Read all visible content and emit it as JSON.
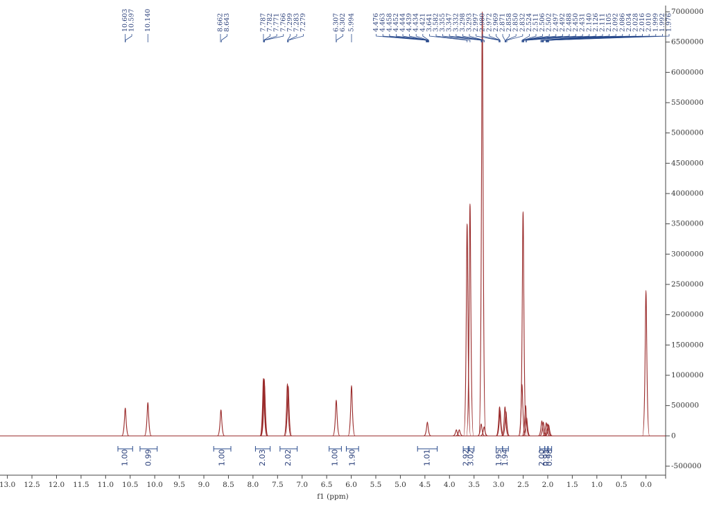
{
  "chart_data": {
    "type": "spectrum",
    "x_label": "f1 (ppm)",
    "color": "#9a2b2b",
    "label_color": "#2a4b8d",
    "x": [
      10.6,
      10.14,
      8.652,
      7.787,
      7.771,
      7.782,
      7.766,
      7.299,
      7.283,
      6.305,
      5.994,
      4.45,
      3.86,
      3.8,
      3.641,
      3.582,
      3.355,
      3.332,
      3.295,
      2.98,
      2.97,
      2.87,
      2.85,
      2.524,
      2.502,
      2.45,
      2.43,
      2.12,
      2.09,
      2.03,
      2.0,
      1.98,
      0.0
    ],
    "values": [
      460000,
      550000,
      430000,
      950000,
      940000,
      850000,
      840000,
      860000,
      820000,
      590000,
      830000,
      230000,
      100000,
      100000,
      3500000,
      3830000,
      200000,
      7000000,
      150000,
      480000,
      420000,
      480000,
      400000,
      850000,
      3700000,
      500000,
      300000,
      250000,
      230000,
      220000,
      200000,
      180000,
      2400000
    ],
    "xlim": [
      13.15,
      -0.4
    ],
    "xticks": [
      {
        "value": 13.0,
        "label": "13.0"
      },
      12.5,
      {
        "value": 12.0,
        "label": "12.0"
      },
      11.5,
      {
        "value": 11.0,
        "label": "11.0"
      },
      10.5,
      {
        "value": 10.0,
        "label": "10.0"
      },
      9.5,
      {
        "value": 9.0,
        "label": "9.0"
      },
      8.5,
      {
        "value": 8.0,
        "label": "8.0"
      },
      7.5,
      {
        "value": 7.0,
        "label": "7.0"
      },
      6.5,
      {
        "value": 6.0,
        "label": "6.0"
      },
      5.5,
      {
        "value": 5.0,
        "label": "5.0"
      },
      4.5,
      {
        "value": 4.0,
        "label": "4.0"
      },
      3.5,
      {
        "value": 3.0,
        "label": "3.0"
      },
      2.5,
      {
        "value": 2.0,
        "label": "2.0"
      },
      1.5,
      {
        "value": 1.0,
        "label": "1.0"
      },
      0.5,
      {
        "value": 0.0,
        "label": "0.0"
      }
    ],
    "ylim": [
      -500000,
      7000000
    ],
    "yticks": [
      -500000,
      0,
      500000,
      1000000,
      1500000,
      2000000,
      2500000,
      3000000,
      3500000,
      4000000,
      4500000,
      5000000,
      5500000,
      6000000,
      6500000,
      7000000
    ],
    "peak_labels": [
      "10.603",
      "10.597",
      "10.140",
      "8.662",
      "8.643",
      "7.787",
      "7.782",
      "7.771",
      "7.766",
      "7.299",
      "7.283",
      "7.279",
      "6.307",
      "6.302",
      "5.994",
      "4.476",
      "4.463",
      "4.458",
      "4.452",
      "4.444",
      "4.439",
      "4.434",
      "4.421",
      "3.641",
      "3.582",
      "3.355",
      "3.347",
      "3.332",
      "3.298",
      "3.293",
      "2.997",
      "2.980",
      "2.972",
      "2.969",
      "2.871",
      "2.858",
      "2.850",
      "2.832",
      "2.524",
      "2.511",
      "2.506",
      "2.502",
      "2.497",
      "2.492",
      "2.488",
      "2.450",
      "2.431",
      "2.140",
      "2.126",
      "2.111",
      "2.105",
      "2.092",
      "2.086",
      "2.034",
      "2.028",
      "2.016",
      "2.010",
      "1.999",
      "1.992",
      "1.976"
    ],
    "integrals": [
      {
        "range": [
          10.75,
          10.45
        ],
        "label": "1.00"
      },
      {
        "range": [
          10.3,
          9.95
        ],
        "label": "0.99"
      },
      {
        "range": [
          8.8,
          8.45
        ],
        "label": "1.00"
      },
      {
        "range": [
          7.95,
          7.65
        ],
        "label": "2.03"
      },
      {
        "range": [
          7.45,
          7.1
        ],
        "label": "2.02"
      },
      {
        "range": [
          6.45,
          6.2
        ],
        "label": "1.00"
      },
      {
        "range": [
          6.1,
          5.85
        ],
        "label": "1.90"
      },
      {
        "range": [
          4.65,
          4.25
        ],
        "label": "1.01"
      },
      {
        "range": [
          3.72,
          3.6
        ],
        "label": "2.92"
      },
      {
        "range": [
          3.62,
          3.5
        ],
        "label": "3.02"
      },
      {
        "range": [
          3.05,
          2.92
        ],
        "label": "1.95"
      },
      {
        "range": [
          2.92,
          2.8
        ],
        "label": "1.94"
      },
      {
        "range": [
          2.16,
          2.06
        ],
        "label": "2.00"
      },
      {
        "range": [
          2.06,
          1.99
        ],
        "label": "0.95"
      },
      {
        "range": [
          2.0,
          1.92
        ],
        "label": "0.98"
      }
    ]
  }
}
